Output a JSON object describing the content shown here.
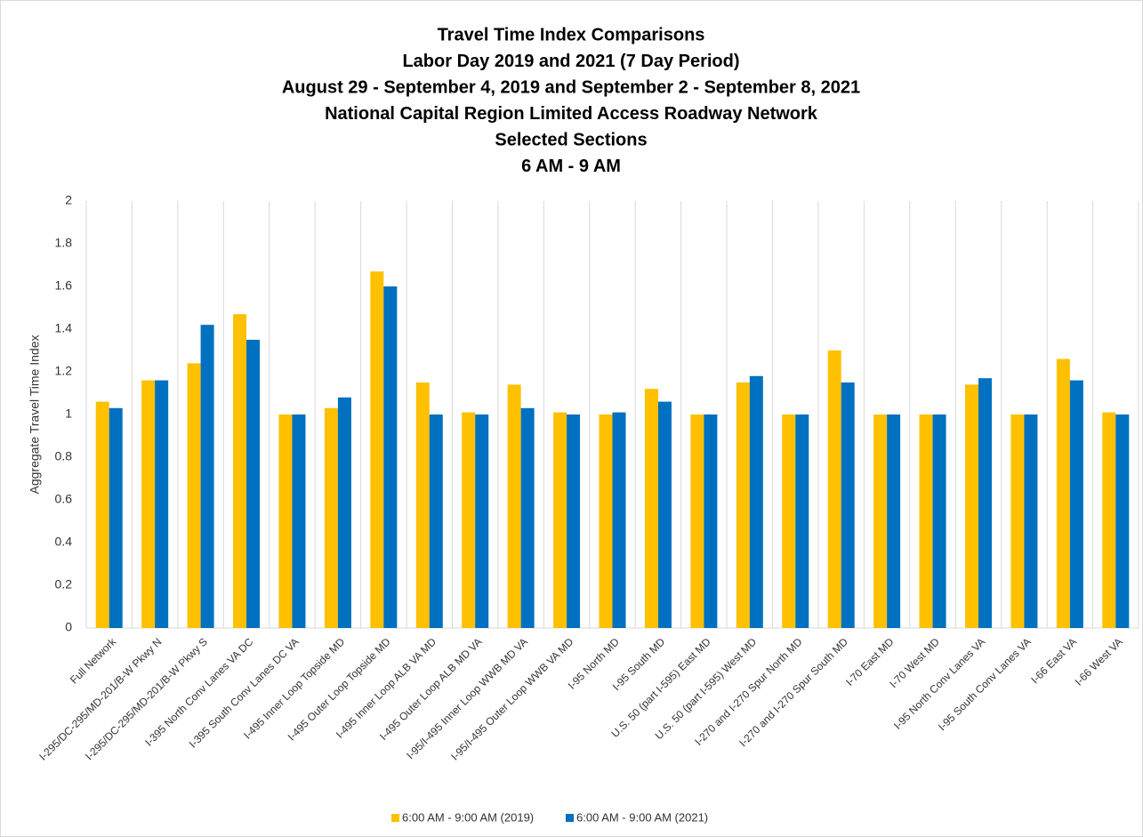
{
  "chart_data": {
    "type": "bar",
    "title": [
      "Travel Time Index Comparisons",
      "Labor Day 2019 and 2021 (7 Day Period)",
      "August 29 - September 4, 2019 and September 2 - September 8, 2021",
      "National Capital Region Limited Access Roadway Network",
      "Selected Sections",
      "6 AM - 9 AM"
    ],
    "y_label": "Aggregate Travel Time Index",
    "categories": [
      "Full  Network",
      "I-295/DC-295/MD-201/B-W Pkwy N",
      "I-295/DC-295/MD-201/B-W Pkwy S",
      "I-395 North Conv Lanes VA DC",
      "I-395 South Conv Lanes DC VA",
      "I-495 Inner Loop Topside MD",
      "I-495 Outer Loop Topside MD",
      "I-495 Inner Loop ALB VA MD",
      "I-495 Outer Loop ALB MD VA",
      "I-95/I-495 Inner Loop WWB MD VA",
      "I-95/I-495 Outer Loop WWB VA MD",
      "I-95 North MD",
      "I-95 South MD",
      "U.S. 50 (part I-595) East MD",
      "U.S. 50 (part I-595) West MD",
      "I-270 and I-270 Spur North MD",
      "I-270 and I-270 Spur South MD",
      "I-70 East MD",
      "I-70 West MD",
      "I-95 North Conv Lanes VA",
      "I-95 South Conv Lanes VA",
      "I-66 East VA",
      "I-66 West VA"
    ],
    "series": [
      {
        "name": "6:00 AM - 9:00 AM (2019)",
        "color": "#ffc000",
        "values": [
          1.06,
          1.16,
          1.24,
          1.47,
          1.0,
          1.03,
          1.67,
          1.15,
          1.01,
          1.14,
          1.01,
          1.0,
          1.12,
          1.0,
          1.15,
          1.0,
          1.3,
          1.0,
          1.0,
          1.14,
          1.0,
          1.26,
          1.01
        ]
      },
      {
        "name": "6:00 AM - 9:00 AM (2021)",
        "color": "#0070c0",
        "values": [
          1.03,
          1.16,
          1.42,
          1.35,
          1.0,
          1.08,
          1.6,
          1.0,
          1.0,
          1.03,
          1.0,
          1.01,
          1.06,
          1.0,
          1.18,
          1.0,
          1.15,
          1.0,
          1.0,
          1.17,
          1.0,
          1.16,
          1.0
        ]
      }
    ],
    "ylim": [
      0,
      2
    ],
    "yticks": [
      0,
      0.2,
      0.4,
      0.6,
      0.8,
      1,
      1.2,
      1.4,
      1.6,
      1.8,
      2
    ],
    "grid": "x",
    "legend": "bottom"
  }
}
